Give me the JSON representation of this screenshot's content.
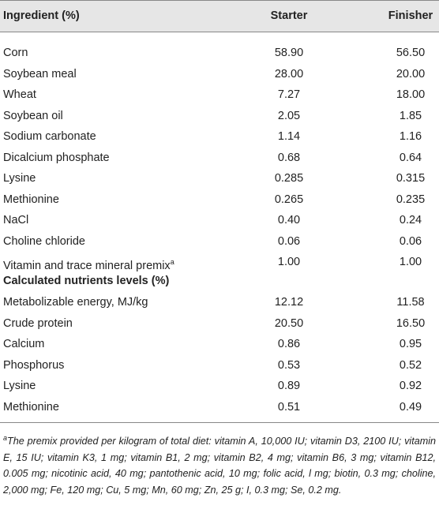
{
  "table": {
    "header": [
      "Ingredient (%)",
      "Starter",
      "Finisher"
    ],
    "ingredient_rows": [
      [
        "Corn",
        "58.90",
        "56.50"
      ],
      [
        "Soybean meal",
        "28.00",
        "20.00"
      ],
      [
        "Wheat",
        "7.27",
        "18.00"
      ],
      [
        "Soybean oil",
        "2.05",
        "1.85"
      ],
      [
        "Sodium carbonate",
        "1.14",
        "1.16"
      ],
      [
        "Dicalcium phosphate",
        "0.68",
        "0.64"
      ],
      [
        "Lysine",
        "0.285",
        "0.315"
      ],
      [
        "Methionine",
        "0.265",
        "0.235"
      ],
      [
        "NaCl",
        "0.40",
        "0.24"
      ],
      [
        "Choline chloride",
        "0.06",
        "0.06"
      ],
      [
        "Vitamin and trace mineral premix",
        "1.00",
        "1.00"
      ]
    ],
    "premix_marker": "a",
    "section_title": "Calculated nutrients levels (%)",
    "nutrient_rows": [
      [
        "Metabolizable energy, MJ/kg",
        "12.12",
        "11.58"
      ],
      [
        "Crude protein",
        "20.50",
        "16.50"
      ],
      [
        "Calcium",
        "0.86",
        "0.95"
      ],
      [
        "Phosphorus",
        "0.53",
        "0.52"
      ],
      [
        "Lysine",
        "0.89",
        "0.92"
      ],
      [
        "Methionine",
        "0.51",
        "0.49"
      ]
    ]
  },
  "footnote": {
    "marker": "a",
    "text": "The premix provided per kilogram of total diet: vitamin A, 10,000 IU; vitamin D3, 2100 IU; vitamin E, 15 IU; vitamin K3, 1 mg; vitamin B1, 2 mg; vitamin B2, 4 mg; vitamin B6, 3 mg; vitamin B12, 0.005 mg; nicotinic acid, 40 mg; pantothenic acid, 10 mg; folic acid, l mg; biotin, 0.3 mg; choline, 2,000 mg; Fe, 120 mg; Cu, 5 mg; Mn, 60 mg; Zn, 25 g; I, 0.3 mg; Se, 0.2 mg."
  }
}
